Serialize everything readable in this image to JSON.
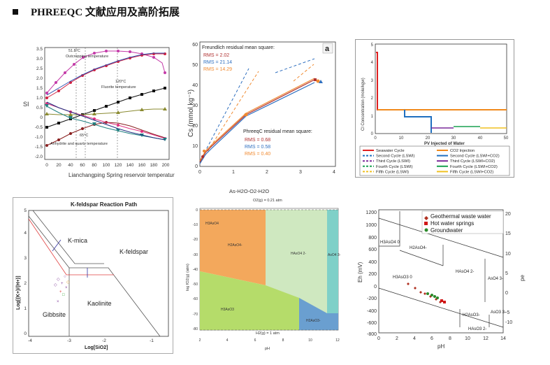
{
  "header": {
    "title": "PHREEQC 文献应用及高阶拓展"
  },
  "panel1": {
    "ylabel": "SI",
    "xlabel": "Lianchangping Spring reservoir temperature",
    "xticks": [
      "0",
      "20",
      "40",
      "60",
      "80",
      "100",
      "120",
      "140",
      "160",
      "180",
      "200"
    ],
    "yticks": [
      "3.5",
      "3.0",
      "2.5",
      "2.0",
      "1.5",
      "1.0",
      "0.5",
      "0",
      "-0.5",
      "-1.0",
      "-1.5",
      "-2.0"
    ],
    "ann1": "51.8°C",
    "ann2": "Outcropping temperature",
    "ann3": "120°C",
    "ann4": "Fluorite temperature",
    "ann5": "65°C",
    "ann6": "Anhydrite and quartz temperature"
  },
  "panel2": {
    "ylabel": "Cs (mmol kg⁻¹)",
    "badge": "a",
    "legend1_title": "Freundlich residual mean square:",
    "legend1": [
      "RMS =  2.02",
      "RMS = 21.14",
      "RMS = 14.29"
    ],
    "legend2_title": "PhreeqC residual mean square:",
    "legend2": [
      "RMS = 0.68",
      "RMS = 0.58",
      "RMS = 0.40"
    ],
    "xticks": [
      "0",
      "1",
      "2",
      "3",
      "4"
    ],
    "yticks": [
      "0",
      "10",
      "20",
      "30",
      "40",
      "50",
      "60"
    ],
    "colors": [
      "#b03030",
      "#2f6fbf",
      "#f08a30"
    ]
  },
  "panel3": {
    "ylabel": "Cl Concentration (mole/kgw)",
    "xlabel": "PV Injected of Water",
    "xticks": [
      "0",
      "10",
      "20",
      "30",
      "40",
      "50"
    ],
    "yticks": [
      "0",
      "1",
      "2",
      "3",
      "4",
      "5"
    ],
    "legend": [
      {
        "label": "Seawater Cycle",
        "color": "#e02020",
        "dash": false
      },
      {
        "label": "CO2 Injection",
        "color": "#f08a1c",
        "dash": false
      },
      {
        "label": "Second Cycle (LSWI)",
        "color": "#1f6fc0",
        "dash": true
      },
      {
        "label": "Second Cycle (LSWI+CO2)",
        "color": "#1f6fc0",
        "dash": false
      },
      {
        "label": "Third Cycle (LSWI)",
        "color": "#7a2a9a",
        "dash": true
      },
      {
        "label": "Third Cycle (LSWI+CO2)",
        "color": "#7a2a9a",
        "dash": false
      },
      {
        "label": "Fourth Cycle (LSWI)",
        "color": "#19a050",
        "dash": true
      },
      {
        "label": "Fourth Cycle (LSWI+CO2)",
        "color": "#19a050",
        "dash": false
      },
      {
        "label": "Fifth Cycle (LSWI)",
        "color": "#f0c020",
        "dash": true
      },
      {
        "label": "Fifth Cycle (LSWI+CO2)",
        "color": "#f0c020",
        "dash": false
      }
    ]
  },
  "panel4": {
    "title": "K-feldspar Reaction Path",
    "ylabel": "Log[{K+}/{H+}]",
    "xlabel": "Log[SiO2]",
    "xticks": [
      "-4",
      "-3",
      "-2",
      "-1"
    ],
    "yticks": [
      "0",
      "1",
      "2",
      "3",
      "4",
      "5"
    ],
    "regions": [
      "K-mica",
      "K-feldspar",
      "Kaolinite",
      "Gibbsite"
    ]
  },
  "panel5": {
    "title": "As-H2O-O2-H2O",
    "top_label": "O2(g) = 0.21 atm",
    "bottom_label": "H2(g) = 1 atm",
    "ylabel": "log fO2(g) (atm)",
    "xlabel": "pH",
    "xticks": [
      "2",
      "4",
      "6",
      "8",
      "10",
      "12"
    ],
    "yticks": [
      "0",
      "-10",
      "-20",
      "-30",
      "-40",
      "-50",
      "-60",
      "-70",
      "-80"
    ],
    "species": [
      "H3AsO4",
      "H2AsO4-",
      "HAsO4 2-",
      "AsO4 3-",
      "H3AsO3",
      "H2AsO3-"
    ]
  },
  "panel6": {
    "ylabel": "Eh (mV)",
    "ylabel2": "pe",
    "xlabel": "pH",
    "legend": [
      {
        "label": "Geothermal waste water",
        "color": "#b03020",
        "shape": "diamond"
      },
      {
        "label": "Hot water springs",
        "color": "#d01818",
        "shape": "square"
      },
      {
        "label": "Groundwater",
        "color": "#2a8a2a",
        "shape": "circle"
      }
    ],
    "xticks": [
      "0",
      "2",
      "4",
      "6",
      "8",
      "10",
      "12",
      "14"
    ],
    "yticks": [
      "1200",
      "1000",
      "800",
      "600",
      "400",
      "200",
      "0",
      "-200",
      "-400",
      "-600",
      "-800"
    ],
    "yticks2": [
      "20",
      "15",
      "10",
      "5",
      "0",
      "-5",
      "-10"
    ],
    "species": [
      "H3AsO4 0",
      "H2AsO4-",
      "HAsO4 2-",
      "AsO4 3-",
      "H3AsO3 0",
      "H2AsO3-",
      "HAsO3 2-",
      "AsO3 3-"
    ]
  }
}
